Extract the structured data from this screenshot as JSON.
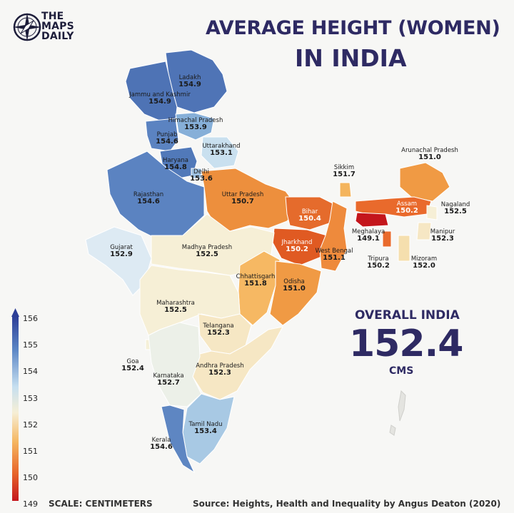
{
  "brand": {
    "line1": "THE",
    "line2": "MAPS",
    "line3": "DAILY"
  },
  "title": {
    "line1": "AVERAGE HEIGHT (WOMEN)",
    "line2": "IN INDIA"
  },
  "overall": {
    "label": "OVERALL INDIA",
    "value": "152.4",
    "unit": "CMS"
  },
  "footer": {
    "scale": "SCALE: CENTIMETERS",
    "source": "Source: Heights, Health and Inequality by Angus Deaton (2020)"
  },
  "legend": {
    "ticks": [
      "156",
      "155",
      "154",
      "153",
      "152",
      "151",
      "150",
      "149"
    ]
  },
  "colors": {
    "title": "#2e2a63",
    "scale_high": "#3a4ea8",
    "scale_mid": "#f4ecd0",
    "scale_low": "#c4161c"
  },
  "regions": [
    {
      "name": "Ladakh",
      "value": "154.9"
    },
    {
      "name": "Jammu and Kashmir",
      "value": "154.9"
    },
    {
      "name": "Himachal Pradesh",
      "value": "153.9"
    },
    {
      "name": "Punjab",
      "value": "154.6"
    },
    {
      "name": "Uttarakhand",
      "value": "153.1"
    },
    {
      "name": "Haryana",
      "value": "154.8"
    },
    {
      "name": "Delhi",
      "value": "153.6"
    },
    {
      "name": "Rajasthan",
      "value": "154.6"
    },
    {
      "name": "Uttar Pradesh",
      "value": "150.7"
    },
    {
      "name": "Sikkim",
      "value": "151.7"
    },
    {
      "name": "Arunachal Pradesh",
      "value": "151.0"
    },
    {
      "name": "Assam",
      "value": "150.2"
    },
    {
      "name": "Nagaland",
      "value": "152.5"
    },
    {
      "name": "Bihar",
      "value": "150.4"
    },
    {
      "name": "Meghalaya",
      "value": "149.1"
    },
    {
      "name": "Manipur",
      "value": "152.3"
    },
    {
      "name": "Gujarat",
      "value": "152.9"
    },
    {
      "name": "Madhya Pradesh",
      "value": "152.5"
    },
    {
      "name": "Jharkhand",
      "value": "150.2"
    },
    {
      "name": "West Bengal",
      "value": "151.1"
    },
    {
      "name": "Tripura",
      "value": "150.2"
    },
    {
      "name": "Mizoram",
      "value": "152.0"
    },
    {
      "name": "Chhattisgarh",
      "value": "151.8"
    },
    {
      "name": "Odisha",
      "value": "151.0"
    },
    {
      "name": "Maharashtra",
      "value": "152.5"
    },
    {
      "name": "Telangana",
      "value": "152.3"
    },
    {
      "name": "Goa",
      "value": "152.4"
    },
    {
      "name": "Andhra Pradesh",
      "value": "152.3"
    },
    {
      "name": "Karnataka",
      "value": "152.7"
    },
    {
      "name": "Tamil Nadu",
      "value": "153.4"
    },
    {
      "name": "Kerala",
      "value": "154.6"
    }
  ]
}
